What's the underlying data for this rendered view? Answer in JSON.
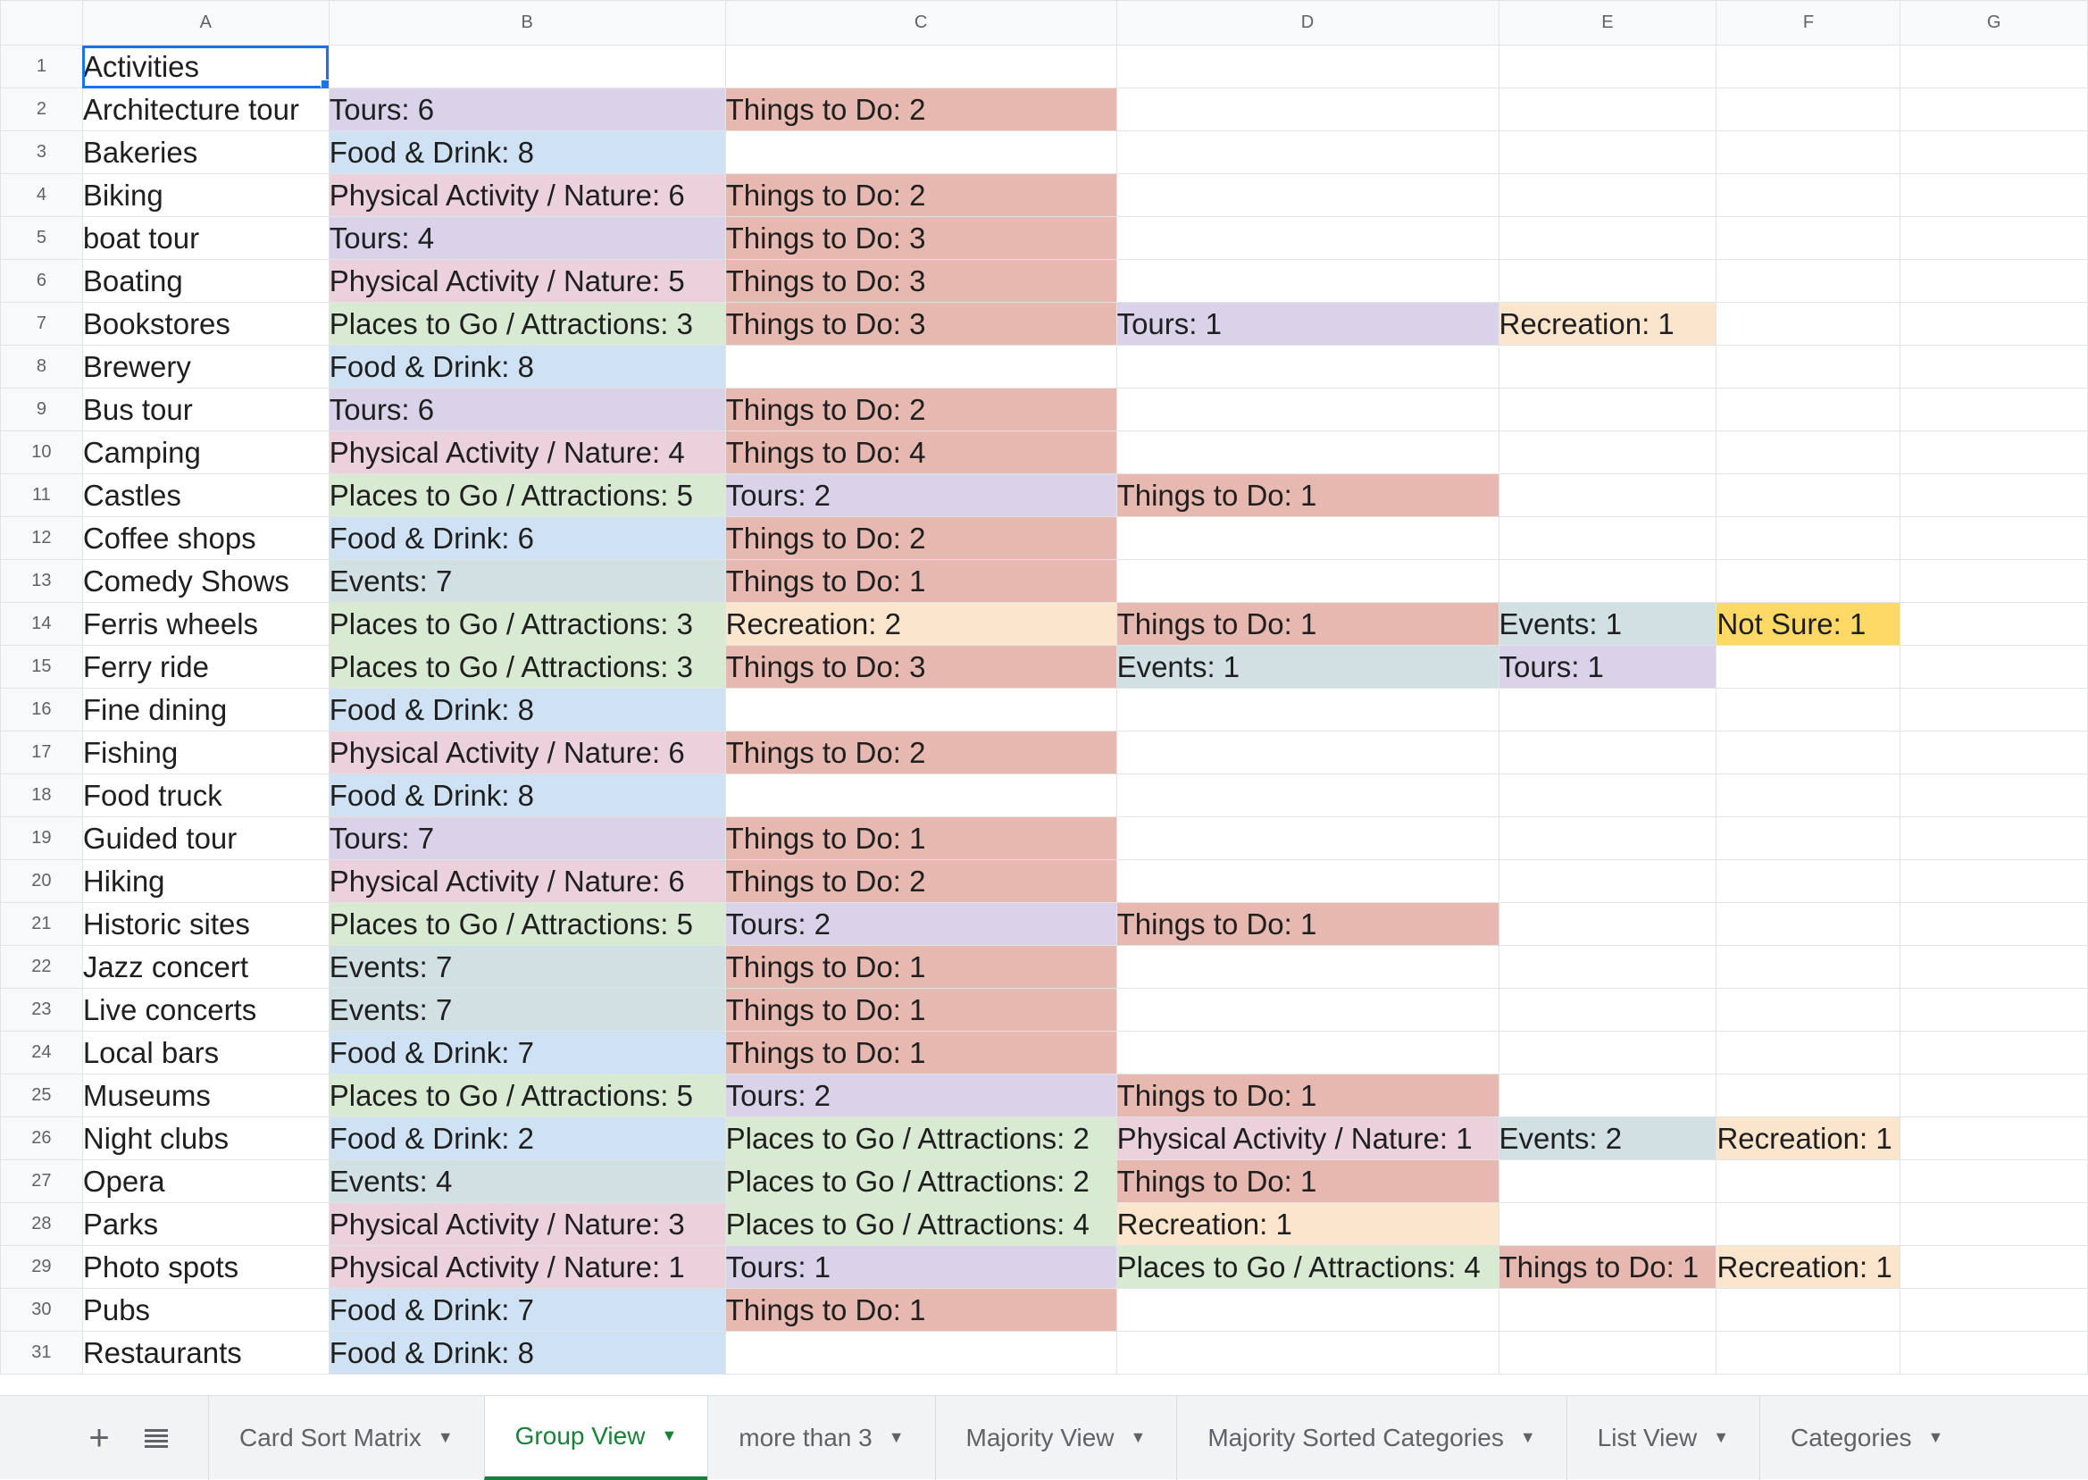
{
  "colors": {
    "tours": "#d9d2e9",
    "things": "#e6b8af",
    "food": "#cfe2f3",
    "physical": "#ead1dc",
    "places": "#d9ead3",
    "events": "#d0e0e3",
    "recreation": "#fce5cd",
    "notsure": "#ffd966",
    "selection": "#1a73e8",
    "active_tab": "#188038"
  },
  "columns": [
    "A",
    "B",
    "C",
    "D",
    "E",
    "F",
    "G"
  ],
  "rows": [
    {
      "num": "1",
      "cells": [
        {
          "t": "Activities"
        },
        {
          "t": ""
        },
        {
          "t": ""
        },
        {
          "t": ""
        },
        {
          "t": ""
        },
        {
          "t": ""
        },
        {
          "t": ""
        }
      ]
    },
    {
      "num": "2",
      "cells": [
        {
          "t": "Architecture tour"
        },
        {
          "t": "Tours: 6",
          "c": "tours"
        },
        {
          "t": "Things to Do: 2",
          "c": "things"
        },
        {
          "t": ""
        },
        {
          "t": ""
        },
        {
          "t": ""
        },
        {
          "t": ""
        }
      ]
    },
    {
      "num": "3",
      "cells": [
        {
          "t": "Bakeries"
        },
        {
          "t": "Food & Drink: 8",
          "c": "food"
        },
        {
          "t": ""
        },
        {
          "t": ""
        },
        {
          "t": ""
        },
        {
          "t": ""
        },
        {
          "t": ""
        }
      ]
    },
    {
      "num": "4",
      "cells": [
        {
          "t": "Biking"
        },
        {
          "t": "Physical Activity / Nature: 6",
          "c": "physical"
        },
        {
          "t": "Things to Do: 2",
          "c": "things"
        },
        {
          "t": ""
        },
        {
          "t": ""
        },
        {
          "t": ""
        },
        {
          "t": ""
        }
      ]
    },
    {
      "num": "5",
      "cells": [
        {
          "t": "boat tour"
        },
        {
          "t": "Tours: 4",
          "c": "tours"
        },
        {
          "t": "Things to Do: 3",
          "c": "things"
        },
        {
          "t": ""
        },
        {
          "t": ""
        },
        {
          "t": ""
        },
        {
          "t": ""
        }
      ]
    },
    {
      "num": "6",
      "cells": [
        {
          "t": "Boating"
        },
        {
          "t": "Physical Activity / Nature: 5",
          "c": "physical"
        },
        {
          "t": "Things to Do: 3",
          "c": "things"
        },
        {
          "t": ""
        },
        {
          "t": ""
        },
        {
          "t": ""
        },
        {
          "t": ""
        }
      ]
    },
    {
      "num": "7",
      "cells": [
        {
          "t": "Bookstores"
        },
        {
          "t": "Places to Go / Attractions: 3",
          "c": "places"
        },
        {
          "t": "Things to Do: 3",
          "c": "things"
        },
        {
          "t": "Tours: 1",
          "c": "tours"
        },
        {
          "t": "Recreation: 1",
          "c": "recreation"
        },
        {
          "t": ""
        },
        {
          "t": ""
        }
      ]
    },
    {
      "num": "8",
      "cells": [
        {
          "t": "Brewery"
        },
        {
          "t": "Food & Drink: 8",
          "c": "food"
        },
        {
          "t": ""
        },
        {
          "t": ""
        },
        {
          "t": ""
        },
        {
          "t": ""
        },
        {
          "t": ""
        }
      ]
    },
    {
      "num": "9",
      "cells": [
        {
          "t": "Bus tour"
        },
        {
          "t": "Tours: 6",
          "c": "tours"
        },
        {
          "t": "Things to Do: 2",
          "c": "things"
        },
        {
          "t": ""
        },
        {
          "t": ""
        },
        {
          "t": ""
        },
        {
          "t": ""
        }
      ]
    },
    {
      "num": "10",
      "cells": [
        {
          "t": "Camping"
        },
        {
          "t": "Physical Activity / Nature: 4",
          "c": "physical"
        },
        {
          "t": "Things to Do: 4",
          "c": "things"
        },
        {
          "t": ""
        },
        {
          "t": ""
        },
        {
          "t": ""
        },
        {
          "t": ""
        }
      ]
    },
    {
      "num": "11",
      "cells": [
        {
          "t": "Castles"
        },
        {
          "t": "Places to Go / Attractions: 5",
          "c": "places"
        },
        {
          "t": "Tours: 2",
          "c": "tours"
        },
        {
          "t": "Things to Do: 1",
          "c": "things"
        },
        {
          "t": ""
        },
        {
          "t": ""
        },
        {
          "t": ""
        }
      ]
    },
    {
      "num": "12",
      "cells": [
        {
          "t": "Coffee shops"
        },
        {
          "t": "Food & Drink: 6",
          "c": "food"
        },
        {
          "t": "Things to Do: 2",
          "c": "things"
        },
        {
          "t": ""
        },
        {
          "t": ""
        },
        {
          "t": ""
        },
        {
          "t": ""
        }
      ]
    },
    {
      "num": "13",
      "cells": [
        {
          "t": "Comedy Shows"
        },
        {
          "t": "Events: 7",
          "c": "events"
        },
        {
          "t": "Things to Do: 1",
          "c": "things"
        },
        {
          "t": ""
        },
        {
          "t": ""
        },
        {
          "t": ""
        },
        {
          "t": ""
        }
      ]
    },
    {
      "num": "14",
      "cells": [
        {
          "t": "Ferris wheels"
        },
        {
          "t": "Places to Go / Attractions: 3",
          "c": "places"
        },
        {
          "t": "Recreation: 2",
          "c": "recreation"
        },
        {
          "t": "Things to Do: 1",
          "c": "things"
        },
        {
          "t": "Events: 1",
          "c": "events"
        },
        {
          "t": "Not Sure: 1",
          "c": "notsure"
        },
        {
          "t": ""
        }
      ]
    },
    {
      "num": "15",
      "cells": [
        {
          "t": "Ferry ride"
        },
        {
          "t": "Places to Go / Attractions: 3",
          "c": "places"
        },
        {
          "t": "Things to Do: 3",
          "c": "things"
        },
        {
          "t": "Events: 1",
          "c": "events"
        },
        {
          "t": "Tours: 1",
          "c": "tours"
        },
        {
          "t": ""
        },
        {
          "t": ""
        }
      ]
    },
    {
      "num": "16",
      "cells": [
        {
          "t": "Fine dining"
        },
        {
          "t": "Food & Drink: 8",
          "c": "food"
        },
        {
          "t": ""
        },
        {
          "t": ""
        },
        {
          "t": ""
        },
        {
          "t": ""
        },
        {
          "t": ""
        }
      ]
    },
    {
      "num": "17",
      "cells": [
        {
          "t": "Fishing"
        },
        {
          "t": "Physical Activity / Nature: 6",
          "c": "physical"
        },
        {
          "t": "Things to Do: 2",
          "c": "things"
        },
        {
          "t": ""
        },
        {
          "t": ""
        },
        {
          "t": ""
        },
        {
          "t": ""
        }
      ]
    },
    {
      "num": "18",
      "cells": [
        {
          "t": "Food truck"
        },
        {
          "t": "Food & Drink: 8",
          "c": "food"
        },
        {
          "t": ""
        },
        {
          "t": ""
        },
        {
          "t": ""
        },
        {
          "t": ""
        },
        {
          "t": ""
        }
      ]
    },
    {
      "num": "19",
      "cells": [
        {
          "t": "Guided tour"
        },
        {
          "t": "Tours: 7",
          "c": "tours"
        },
        {
          "t": "Things to Do: 1",
          "c": "things"
        },
        {
          "t": ""
        },
        {
          "t": ""
        },
        {
          "t": ""
        },
        {
          "t": ""
        }
      ]
    },
    {
      "num": "20",
      "cells": [
        {
          "t": "Hiking"
        },
        {
          "t": "Physical Activity / Nature: 6",
          "c": "physical"
        },
        {
          "t": "Things to Do: 2",
          "c": "things"
        },
        {
          "t": ""
        },
        {
          "t": ""
        },
        {
          "t": ""
        },
        {
          "t": ""
        }
      ]
    },
    {
      "num": "21",
      "cells": [
        {
          "t": "Historic sites"
        },
        {
          "t": "Places to Go / Attractions: 5",
          "c": "places"
        },
        {
          "t": "Tours: 2",
          "c": "tours"
        },
        {
          "t": "Things to Do: 1",
          "c": "things"
        },
        {
          "t": ""
        },
        {
          "t": ""
        },
        {
          "t": ""
        }
      ]
    },
    {
      "num": "22",
      "cells": [
        {
          "t": "Jazz concert"
        },
        {
          "t": "Events: 7",
          "c": "events"
        },
        {
          "t": "Things to Do: 1",
          "c": "things"
        },
        {
          "t": ""
        },
        {
          "t": ""
        },
        {
          "t": ""
        },
        {
          "t": ""
        }
      ]
    },
    {
      "num": "23",
      "cells": [
        {
          "t": "Live concerts"
        },
        {
          "t": "Events: 7",
          "c": "events"
        },
        {
          "t": "Things to Do: 1",
          "c": "things"
        },
        {
          "t": ""
        },
        {
          "t": ""
        },
        {
          "t": ""
        },
        {
          "t": ""
        }
      ]
    },
    {
      "num": "24",
      "cells": [
        {
          "t": "Local bars"
        },
        {
          "t": "Food & Drink: 7",
          "c": "food"
        },
        {
          "t": "Things to Do: 1",
          "c": "things"
        },
        {
          "t": ""
        },
        {
          "t": ""
        },
        {
          "t": ""
        },
        {
          "t": ""
        }
      ]
    },
    {
      "num": "25",
      "cells": [
        {
          "t": "Museums"
        },
        {
          "t": "Places to Go / Attractions: 5",
          "c": "places"
        },
        {
          "t": "Tours: 2",
          "c": "tours"
        },
        {
          "t": "Things to Do: 1",
          "c": "things"
        },
        {
          "t": ""
        },
        {
          "t": ""
        },
        {
          "t": ""
        }
      ]
    },
    {
      "num": "26",
      "cells": [
        {
          "t": "Night clubs"
        },
        {
          "t": "Food & Drink: 2",
          "c": "food"
        },
        {
          "t": "Places to Go / Attractions: 2",
          "c": "places"
        },
        {
          "t": "Physical Activity / Nature: 1",
          "c": "physical"
        },
        {
          "t": "Events: 2",
          "c": "events"
        },
        {
          "t": "Recreation: 1",
          "c": "recreation"
        },
        {
          "t": ""
        }
      ]
    },
    {
      "num": "27",
      "cells": [
        {
          "t": "Opera"
        },
        {
          "t": "Events: 4",
          "c": "events"
        },
        {
          "t": "Places to Go / Attractions: 2",
          "c": "places"
        },
        {
          "t": "Things to Do: 1",
          "c": "things"
        },
        {
          "t": ""
        },
        {
          "t": ""
        },
        {
          "t": ""
        }
      ]
    },
    {
      "num": "28",
      "cells": [
        {
          "t": "Parks"
        },
        {
          "t": "Physical Activity / Nature: 3",
          "c": "physical"
        },
        {
          "t": "Places to Go / Attractions: 4",
          "c": "places"
        },
        {
          "t": "Recreation: 1",
          "c": "recreation"
        },
        {
          "t": ""
        },
        {
          "t": ""
        },
        {
          "t": ""
        }
      ]
    },
    {
      "num": "29",
      "cells": [
        {
          "t": "Photo spots"
        },
        {
          "t": "Physical Activity / Nature: 1",
          "c": "physical"
        },
        {
          "t": "Tours: 1",
          "c": "tours"
        },
        {
          "t": "Places to Go / Attractions: 4",
          "c": "places"
        },
        {
          "t": "Things to Do: 1",
          "c": "things"
        },
        {
          "t": "Recreation: 1",
          "c": "recreation"
        },
        {
          "t": ""
        }
      ]
    },
    {
      "num": "30",
      "cells": [
        {
          "t": "Pubs"
        },
        {
          "t": "Food & Drink: 7",
          "c": "food"
        },
        {
          "t": "Things to Do: 1",
          "c": "things"
        },
        {
          "t": ""
        },
        {
          "t": ""
        },
        {
          "t": ""
        },
        {
          "t": ""
        }
      ]
    },
    {
      "num": "31",
      "cells": [
        {
          "t": "Restaurants"
        },
        {
          "t": "Food & Drink: 8",
          "c": "food"
        },
        {
          "t": ""
        },
        {
          "t": ""
        },
        {
          "t": ""
        },
        {
          "t": ""
        },
        {
          "t": ""
        }
      ]
    }
  ],
  "selected_cell": "A1",
  "tabbar": {
    "add_icon": "plus-icon",
    "list_icon": "list-icon",
    "tabs": [
      {
        "label": "Card Sort Matrix",
        "active": false
      },
      {
        "label": "Group View",
        "active": true
      },
      {
        "label": "more than 3",
        "active": false
      },
      {
        "label": "Majority View",
        "active": false
      },
      {
        "label": "Majority Sorted Categories",
        "active": false
      },
      {
        "label": "List View",
        "active": false
      },
      {
        "label": "Categories",
        "active": false
      }
    ]
  }
}
